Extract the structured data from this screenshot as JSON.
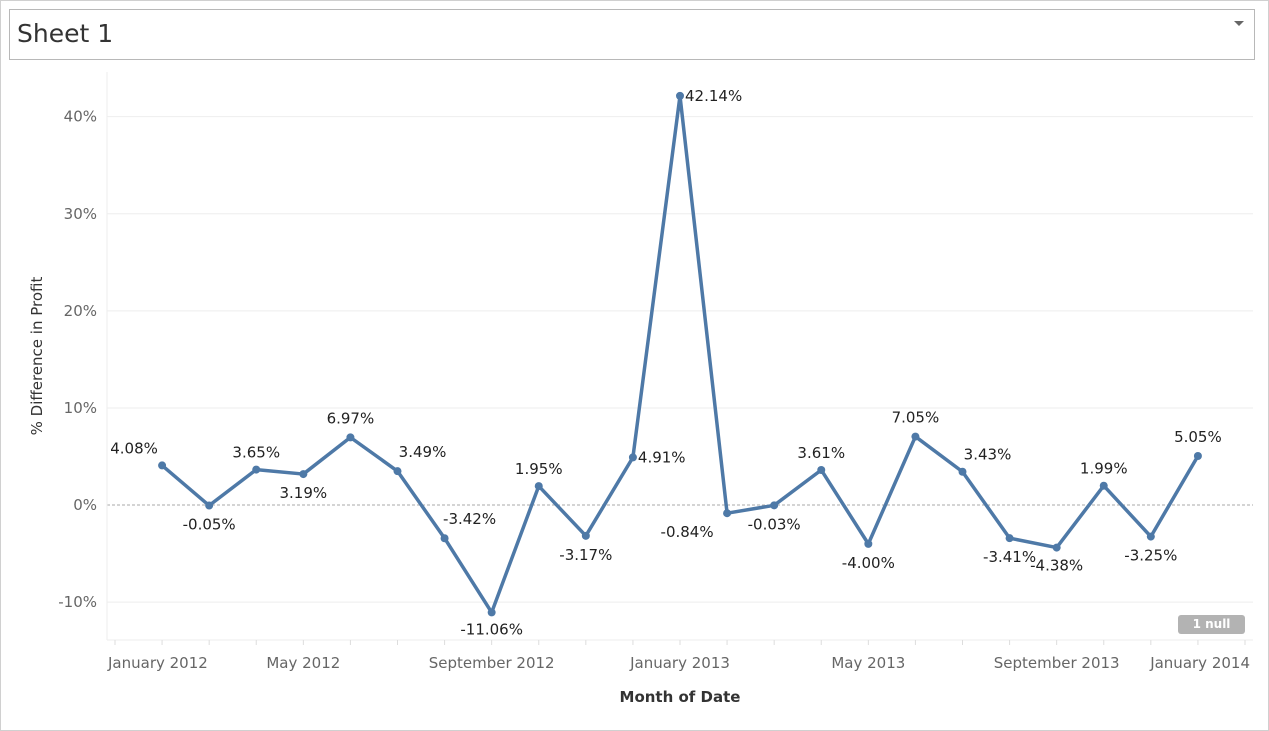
{
  "sheet": {
    "title": "Sheet 1",
    "menu_icon": "caret-down-icon"
  },
  "colors": {
    "line": "#4e79a7",
    "grid": "#eeeeee",
    "zero_line": "#aaaaaa",
    "null_badge": "#b3b3b3"
  },
  "null_indicator": "1 null",
  "chart_data": {
    "type": "line",
    "title": "",
    "xlabel": "Month of Date",
    "ylabel": "% Difference in Profit",
    "x_ticks": [
      "January 2012",
      "May 2012",
      "September 2012",
      "January 2013",
      "May 2013",
      "September 2013",
      "January 2014"
    ],
    "y_ticks": [
      "-10%",
      "0%",
      "10%",
      "20%",
      "30%",
      "40%"
    ],
    "y_tick_values": [
      -10,
      0,
      10,
      20,
      30,
      40
    ],
    "ylim": [
      -13.9,
      44.6
    ],
    "xlim": [
      "2012-01",
      "2014-01"
    ],
    "grid": true,
    "markers": true,
    "x": [
      "2012-02",
      "2012-03",
      "2012-04",
      "2012-05",
      "2012-06",
      "2012-07",
      "2012-08",
      "2012-09",
      "2012-10",
      "2012-11",
      "2012-12",
      "2013-01",
      "2013-02",
      "2013-03",
      "2013-04",
      "2013-05",
      "2013-06",
      "2013-07",
      "2013-08",
      "2013-09",
      "2013-10",
      "2013-11",
      "2013-12"
    ],
    "values": [
      4.08,
      -0.05,
      3.65,
      3.19,
      6.97,
      3.49,
      -3.42,
      -11.06,
      1.95,
      -3.17,
      4.91,
      42.14,
      -0.84,
      -0.03,
      3.61,
      -4.0,
      7.05,
      3.43,
      -3.41,
      -4.38,
      1.99,
      -3.25,
      5.05
    ],
    "labels": [
      "4.08%",
      "-0.05%",
      "3.65%",
      "3.19%",
      "6.97%",
      "3.49%",
      "-3.42%",
      "-11.06%",
      "1.95%",
      "-3.17%",
      "4.91%",
      "42.14%",
      "-0.84%",
      "-0.03%",
      "3.61%",
      "-4.00%",
      "7.05%",
      "3.43%",
      "-3.41%",
      "-4.38%",
      "1.99%",
      "-3.25%",
      "5.05%"
    ]
  }
}
